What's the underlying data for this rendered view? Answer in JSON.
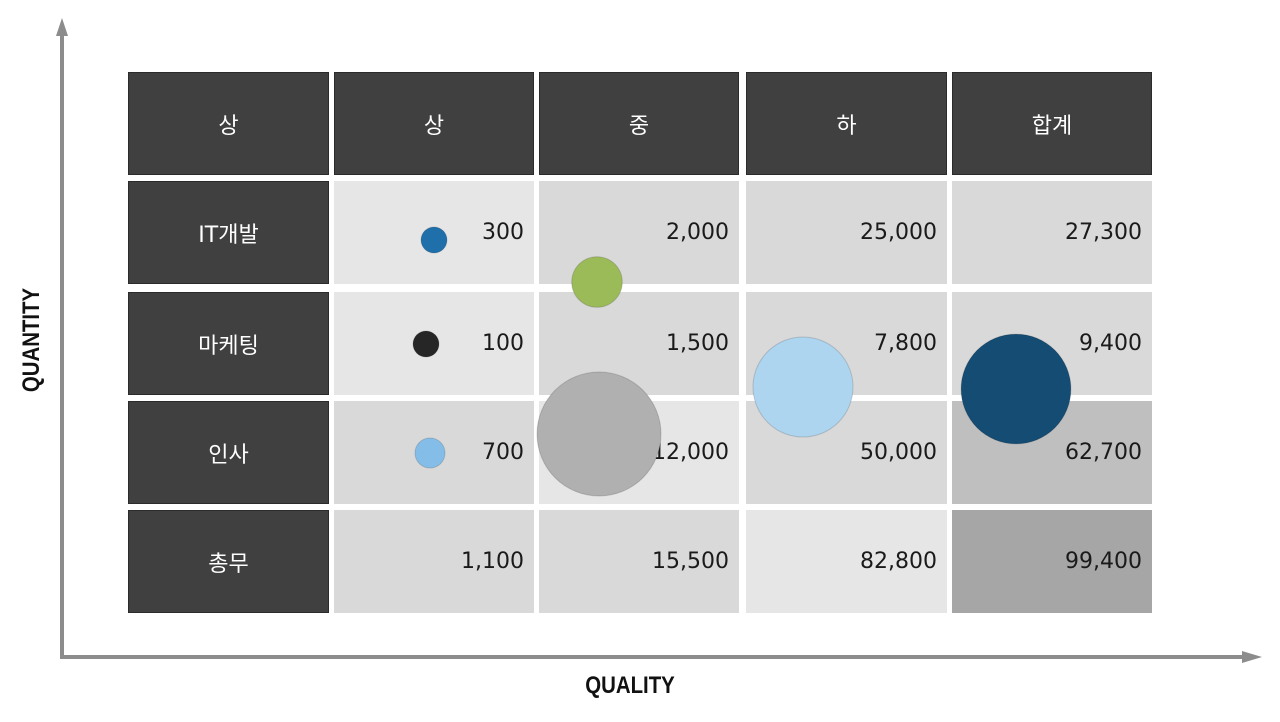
{
  "chart_data": {
    "type": "table",
    "xlabel": "QUALITY",
    "ylabel": "QUANTITY",
    "corner_label": "상",
    "columns": [
      "상",
      "중",
      "하",
      "합계"
    ],
    "rows": [
      {
        "label": "IT개발",
        "values": [
          "300",
          "2,000",
          "25,000",
          "27,300"
        ],
        "fills": [
          "#e6e6e6",
          "#d9d9d9",
          "#d9d9d9",
          "#d9d9d9"
        ]
      },
      {
        "label": "마케팅",
        "values": [
          "100",
          "1,500",
          "7,800",
          "9,400"
        ],
        "fills": [
          "#e6e6e6",
          "#d9d9d9",
          "#d9d9d9",
          "#d9d9d9"
        ]
      },
      {
        "label": "인사",
        "values": [
          "700",
          "12,000",
          "50,000",
          "62,700"
        ],
        "fills": [
          "#d9d9d9",
          "#e6e6e6",
          "#d9d9d9",
          "#bfbfbf"
        ]
      },
      {
        "label": "총무",
        "values": [
          "1,100",
          "15,500",
          "82,800",
          "99,400"
        ],
        "fills": [
          "#d9d9d9",
          "#d9d9d9",
          "#e6e6e6",
          "#a6a6a6"
        ]
      }
    ],
    "bubbles": [
      {
        "row": "IT개발",
        "column": "상",
        "value": 300,
        "color": "#1f6fab"
      },
      {
        "row": "마케팅",
        "column": "상",
        "value": 100,
        "color": "#262626"
      },
      {
        "row": "인사",
        "column": "상",
        "value": 700,
        "color": "#84bee8"
      },
      {
        "row": "IT개발",
        "column": "중",
        "value": 2000,
        "color": "#9bbb59"
      },
      {
        "row": "인사",
        "column": "중",
        "value": 12000,
        "color": "#b0b0b0"
      },
      {
        "row": "마케팅",
        "column": "하",
        "value": 7800,
        "color": "#aed5f0"
      },
      {
        "row": "마케팅",
        "column": "합계",
        "value": 9400,
        "color": "#154c73"
      }
    ]
  },
  "colors": {
    "header_fill": "#404040",
    "header_text": "#ffffff",
    "axis": "#8c8c8c"
  }
}
